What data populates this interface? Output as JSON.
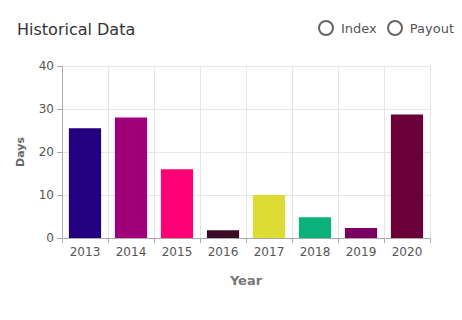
{
  "chart_data": {
    "type": "bar",
    "title": "Historical Data",
    "x_label": "Year",
    "y_label": "Days",
    "categories": [
      "2013",
      "2014",
      "2015",
      "2016",
      "2017",
      "2018",
      "2019",
      "2020"
    ],
    "values": [
      25.5,
      28,
      16,
      1.8,
      10,
      4.8,
      2.3,
      28.7
    ],
    "colors": [
      "#22007f",
      "#a0007a",
      "#ff0077",
      "#3a0a26",
      "#dcdc35",
      "#0cb07a",
      "#7a0060",
      "#6b0038"
    ],
    "ylim": [
      0,
      40
    ],
    "yticks": [
      0,
      10,
      20,
      30,
      40
    ],
    "grid": true
  },
  "controls": [
    "Index",
    "Payout"
  ]
}
